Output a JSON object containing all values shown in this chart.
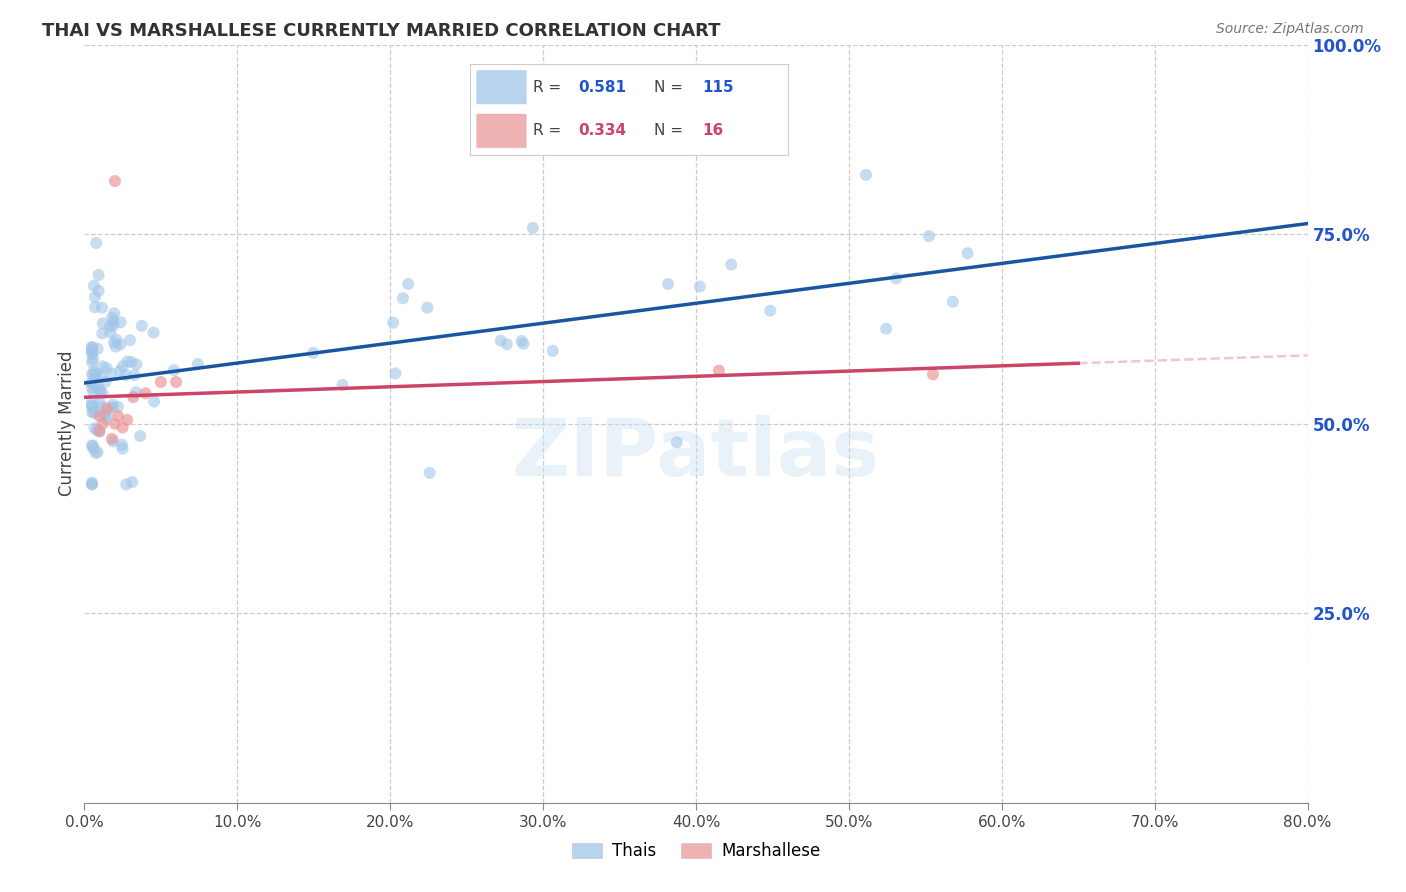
{
  "title": "THAI VS MARSHALLESE CURRENTLY MARRIED CORRELATION CHART",
  "source": "Source: ZipAtlas.com",
  "ylabel": "Currently Married",
  "xlim": [
    0.0,
    0.8
  ],
  "ylim": [
    0.0,
    1.0
  ],
  "thai_R": 0.581,
  "thai_N": 115,
  "marsh_R": 0.334,
  "marsh_N": 16,
  "thai_color": "#9fc5e8",
  "marsh_color": "#ea9999",
  "thai_line_color": "#1a56a0",
  "marsh_line_color": "#cc4466",
  "thai_scatter_alpha": 0.6,
  "marsh_scatter_alpha": 0.7,
  "marker_size": 75,
  "watermark": "ZIPatlas",
  "legend_labels": [
    "Thais",
    "Marshallese"
  ],
  "thai_line_x0": 0.0,
  "thai_line_y0": 0.565,
  "thai_line_x1": 0.8,
  "thai_line_y1": 0.755,
  "marsh_line_x0": 0.0,
  "marsh_line_y0": 0.455,
  "marsh_line_x1": 0.65,
  "marsh_line_y1": 0.655,
  "x_ticks": [
    0.0,
    0.1,
    0.2,
    0.3,
    0.4,
    0.5,
    0.6,
    0.7,
    0.8
  ],
  "x_tick_labels": [
    "0.0%",
    "10.0%",
    "20.0%",
    "30.0%",
    "40.0%",
    "50.0%",
    "60.0%",
    "70.0%",
    "80.0%"
  ],
  "y_ticks_right": [
    0.25,
    0.5,
    0.75,
    1.0
  ],
  "y_tick_labels_right": [
    "25.0%",
    "50.0%",
    "75.0%",
    "100.0%"
  ],
  "grid_color": "#cccccc",
  "background": "#ffffff"
}
